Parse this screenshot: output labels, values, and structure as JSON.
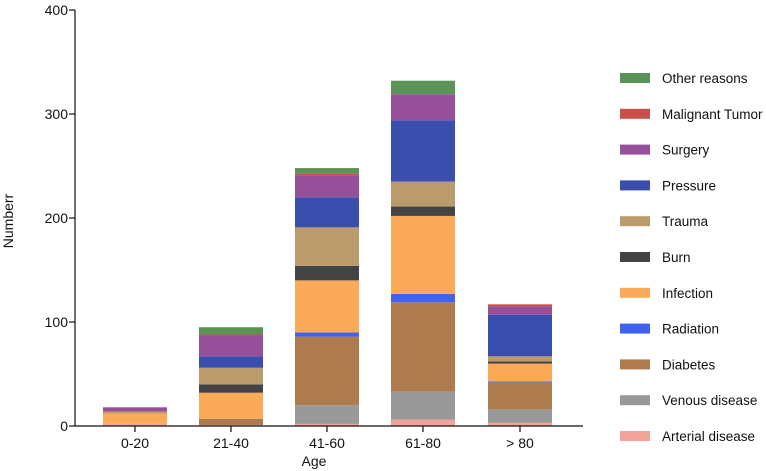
{
  "chart_data": {
    "type": "bar",
    "stacked": true,
    "xlabel": "Age",
    "ylabel": "Numberr",
    "ylim": [
      0,
      400
    ],
    "yticks": [
      0,
      100,
      200,
      300,
      400
    ],
    "categories": [
      "0-20",
      "21-40",
      "41-60",
      "61-80",
      "> 80"
    ],
    "series": [
      {
        "name": "Arterial disease",
        "color": "#f4a39a",
        "values": [
          2,
          1,
          2,
          6,
          3
        ]
      },
      {
        "name": "Venous disease",
        "color": "#999999",
        "values": [
          0,
          0,
          18,
          27,
          13
        ]
      },
      {
        "name": "Diabetes",
        "color": "#ad7b4e",
        "values": [
          0,
          6,
          66,
          86,
          26
        ]
      },
      {
        "name": "Radiation",
        "color": "#3f63f0",
        "values": [
          0,
          0,
          4,
          8,
          1
        ]
      },
      {
        "name": "Infection",
        "color": "#fbaa59",
        "values": [
          10,
          25,
          50,
          75,
          17
        ]
      },
      {
        "name": "Burn",
        "color": "#444444",
        "values": [
          0,
          8,
          14,
          9,
          2
        ]
      },
      {
        "name": "Trauma",
        "color": "#bb9b6b",
        "values": [
          2,
          16,
          37,
          24,
          5
        ]
      },
      {
        "name": "Pressure",
        "color": "#3a4fad",
        "values": [
          0,
          11,
          29,
          59,
          40
        ]
      },
      {
        "name": "Surgery",
        "color": "#96509a",
        "values": [
          4,
          20,
          21,
          25,
          8
        ]
      },
      {
        "name": "Malignant Tumor",
        "color": "#c8504a",
        "values": [
          0,
          1,
          2,
          0,
          2
        ]
      },
      {
        "name": "Other reasons",
        "color": "#5a9257",
        "values": [
          0,
          7,
          5,
          13,
          0
        ]
      }
    ],
    "legend_position": "right",
    "grid": false
  }
}
